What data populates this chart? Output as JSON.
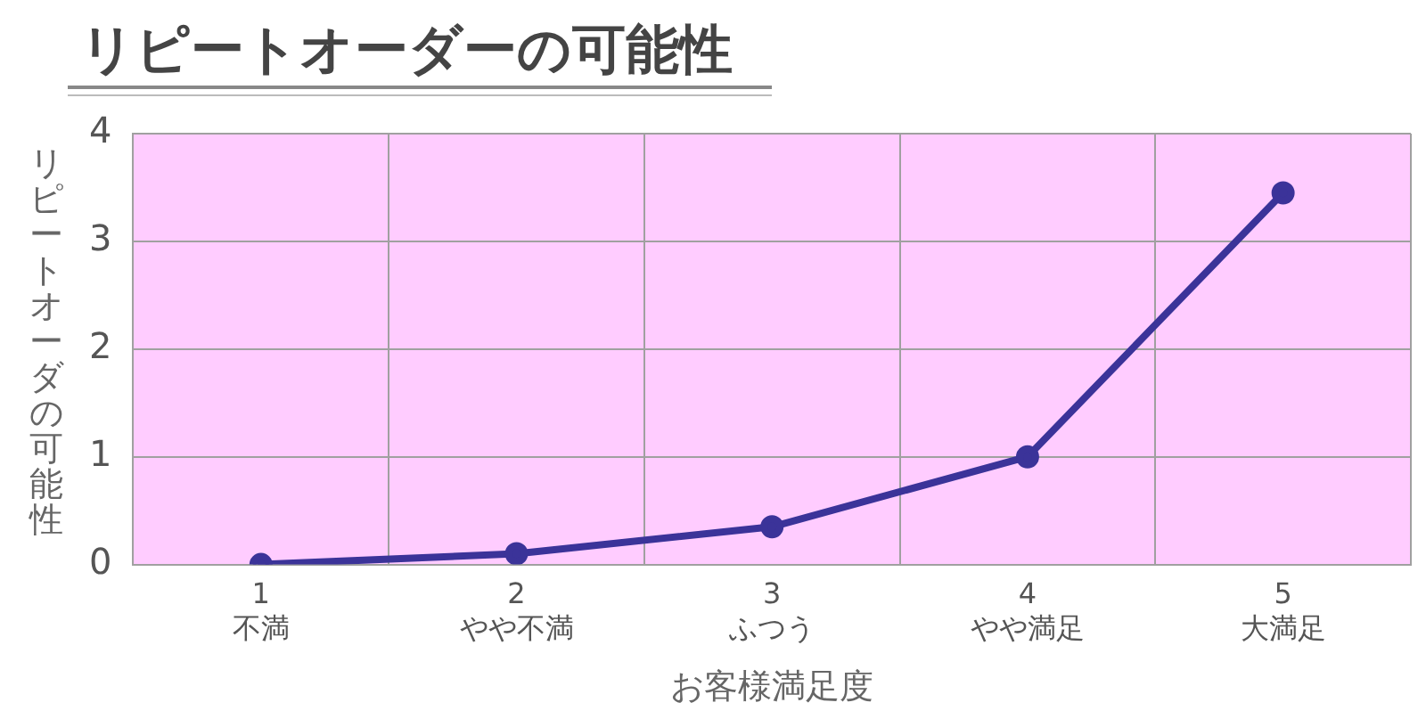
{
  "chart_data": {
    "type": "line",
    "title": "リピートオーダーの可能性",
    "xlabel": "お客様満足度",
    "ylabel": "リピートオーダの可能性",
    "categories": [
      "1\n不満",
      "2\nやや不満",
      "3\nふつう",
      "4\nやや満足",
      "5\n大満足"
    ],
    "series": [
      {
        "color": "#3b3399",
        "values": [
          0,
          0.1,
          0.35,
          1,
          3.45
        ]
      }
    ],
    "ylim": [
      0,
      4
    ],
    "yticks": [
      0,
      1,
      2,
      3,
      4
    ],
    "grid": true,
    "legend": false,
    "marker": "circle",
    "line_style": "solid"
  }
}
